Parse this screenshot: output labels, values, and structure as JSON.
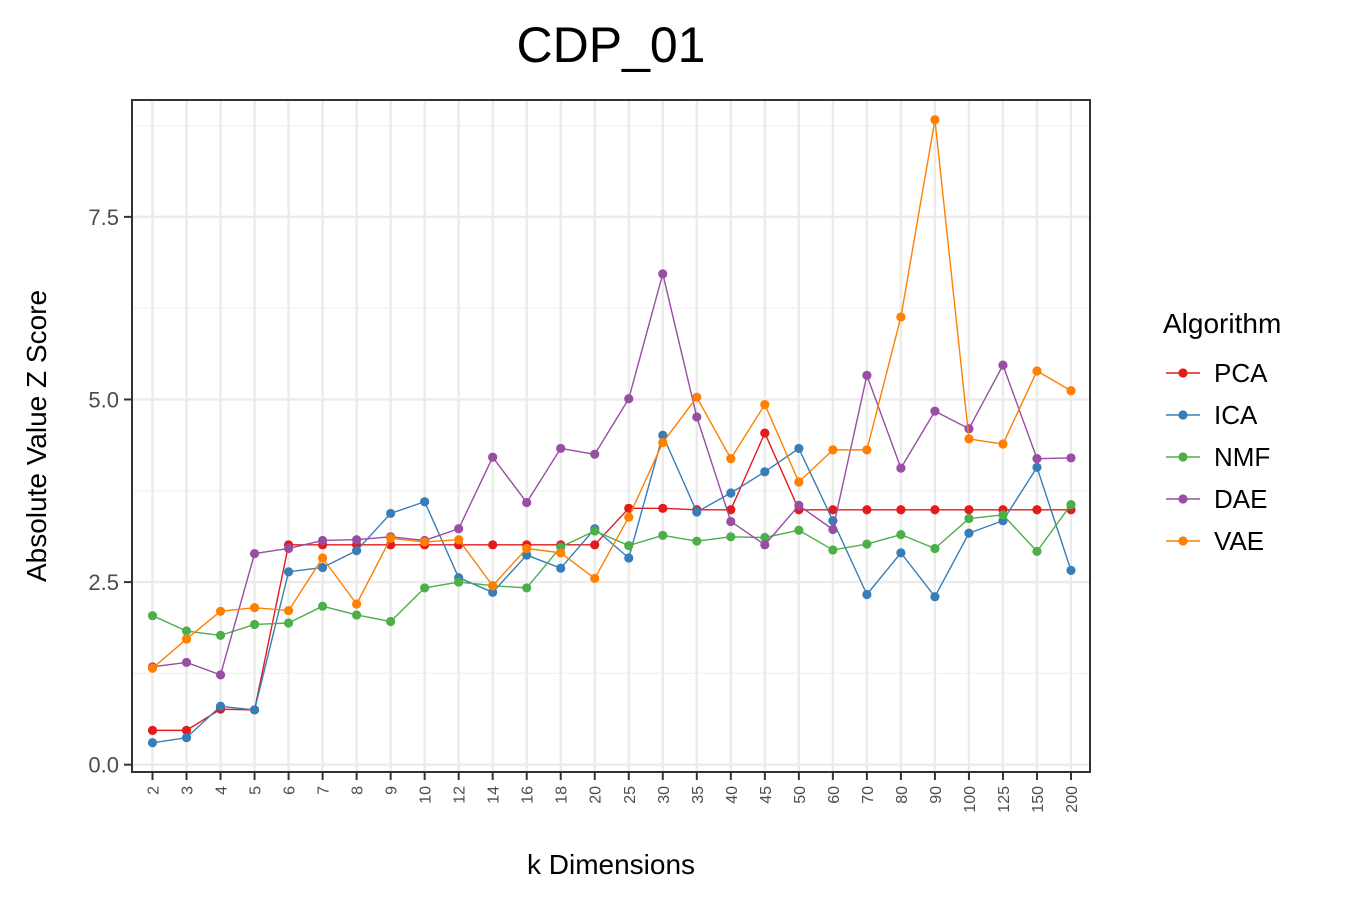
{
  "chart_data": {
    "type": "line",
    "title": "CDP_01",
    "xlabel": "k Dimensions",
    "ylabel": "Absolute Value Z Score",
    "x": [
      "2",
      "3",
      "4",
      "5",
      "6",
      "7",
      "8",
      "9",
      "10",
      "12",
      "14",
      "16",
      "18",
      "20",
      "25",
      "30",
      "35",
      "40",
      "45",
      "50",
      "60",
      "70",
      "80",
      "90",
      "100",
      "125",
      "150",
      "200"
    ],
    "ylim": [
      -0.1,
      9.1
    ],
    "yticks": [
      0.0,
      2.5,
      5.0,
      7.5
    ],
    "ytick_labels": [
      "0.0",
      "2.5",
      "5.0",
      "7.5"
    ],
    "grid": true,
    "legend": {
      "title": "Algorithm",
      "position": "right"
    },
    "series": [
      {
        "name": "PCA",
        "color": "#e41a1c",
        "values": [
          0.47,
          0.47,
          0.76,
          0.75,
          3.01,
          3.01,
          3.01,
          3.01,
          3.01,
          3.01,
          3.01,
          3.01,
          3.01,
          3.01,
          3.51,
          3.51,
          3.49,
          3.49,
          4.54,
          3.49,
          3.49,
          3.49,
          3.49,
          3.49,
          3.49,
          3.49,
          3.49,
          3.49
        ]
      },
      {
        "name": "ICA",
        "color": "#377eb8",
        "values": [
          0.3,
          0.37,
          0.8,
          0.75,
          2.64,
          2.7,
          2.93,
          3.44,
          3.6,
          2.56,
          2.36,
          2.87,
          2.69,
          3.23,
          2.83,
          4.51,
          3.46,
          3.72,
          4.01,
          4.33,
          3.34,
          2.33,
          2.9,
          2.3,
          3.17,
          3.34,
          4.07,
          2.66
        ]
      },
      {
        "name": "NMF",
        "color": "#4daf4a",
        "values": [
          2.04,
          1.83,
          1.77,
          1.92,
          1.94,
          2.17,
          2.05,
          1.96,
          2.42,
          2.5,
          2.45,
          2.42,
          2.98,
          3.2,
          3.0,
          3.14,
          3.06,
          3.12,
          3.11,
          3.21,
          2.94,
          3.02,
          3.15,
          2.96,
          3.37,
          3.42,
          2.92,
          3.56
        ]
      },
      {
        "name": "DAE",
        "color": "#984ea3",
        "values": [
          1.34,
          1.4,
          1.23,
          2.89,
          2.96,
          3.07,
          3.08,
          3.12,
          3.07,
          3.23,
          4.21,
          3.59,
          4.33,
          4.25,
          5.01,
          6.72,
          4.76,
          3.33,
          3.01,
          3.55,
          3.22,
          5.33,
          4.06,
          4.84,
          4.6,
          5.47,
          4.19,
          4.2
        ]
      },
      {
        "name": "VAE",
        "color": "#ff7f00",
        "values": [
          1.32,
          1.72,
          2.1,
          2.15,
          2.11,
          2.83,
          2.2,
          3.1,
          3.05,
          3.08,
          2.45,
          2.96,
          2.9,
          2.55,
          3.39,
          4.41,
          5.03,
          4.19,
          4.93,
          3.87,
          4.31,
          4.31,
          6.13,
          8.83,
          4.46,
          4.39,
          5.39,
          5.12
        ]
      }
    ]
  }
}
